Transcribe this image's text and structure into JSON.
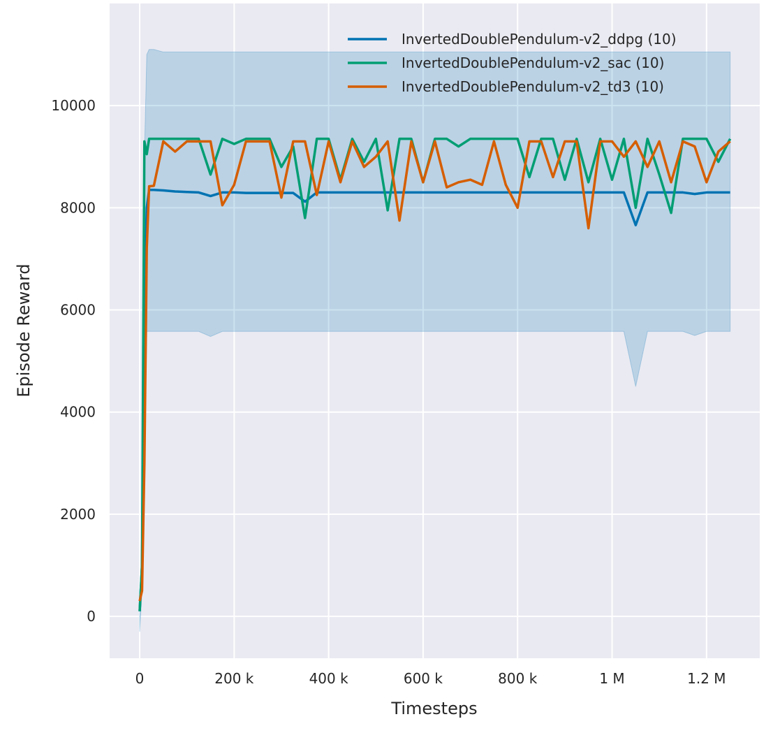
{
  "chart_data": {
    "type": "line",
    "title": "",
    "xlabel": "Timesteps",
    "ylabel": "Episode Reward",
    "xlim": [
      -63600,
      1312600
    ],
    "ylim": [
      -820,
      12000
    ],
    "grid": true,
    "legend_position": "top-right",
    "background": "#eaeaf2",
    "x_ticks": [
      0,
      200000,
      400000,
      600000,
      800000,
      1000000,
      1200000
    ],
    "x_tick_labels": [
      "0",
      "200 k",
      "400 k",
      "600 k",
      "800 k",
      "1 M",
      "1.2 M"
    ],
    "y_ticks": [
      0,
      2000,
      4000,
      6000,
      8000,
      10000
    ],
    "y_tick_labels": [
      "0",
      "2000",
      "4000",
      "6000",
      "8000",
      "10000"
    ],
    "x": [
      0,
      5000,
      10000,
      15000,
      20000,
      30000,
      50000,
      75000,
      100000,
      125000,
      150000,
      175000,
      200000,
      225000,
      250000,
      275000,
      300000,
      325000,
      350000,
      375000,
      400000,
      425000,
      450000,
      475000,
      500000,
      525000,
      550000,
      575000,
      600000,
      625000,
      650000,
      675000,
      700000,
      725000,
      750000,
      775000,
      800000,
      825000,
      850000,
      875000,
      900000,
      925000,
      950000,
      975000,
      1000000,
      1025000,
      1050000,
      1075000,
      1100000,
      1125000,
      1150000,
      1175000,
      1200000,
      1225000,
      1250000
    ],
    "series": [
      {
        "name": "InvertedDoublePendulum-v2_ddpg (10)",
        "color": "#0173b2",
        "values": [
          100,
          1000,
          6000,
          8000,
          8350,
          8350,
          8340,
          8320,
          8310,
          8300,
          8230,
          8300,
          8300,
          8290,
          8290,
          8290,
          8290,
          8290,
          8120,
          8300,
          8300,
          8300,
          8300,
          8300,
          8300,
          8300,
          8300,
          8300,
          8300,
          8300,
          8300,
          8300,
          8300,
          8300,
          8300,
          8300,
          8300,
          8300,
          8300,
          8300,
          8300,
          8300,
          8300,
          8300,
          8300,
          8300,
          7660,
          8300,
          8300,
          8300,
          8300,
          8270,
          8300,
          8300,
          8300
        ],
        "ci_lower": [
          -300,
          500,
          3000,
          5580,
          5580,
          5580,
          5580,
          5580,
          5580,
          5580,
          5480,
          5580,
          5580,
          5580,
          5580,
          5580,
          5580,
          5580,
          5580,
          5580,
          5580,
          5580,
          5580,
          5580,
          5580,
          5580,
          5580,
          5580,
          5580,
          5580,
          5580,
          5580,
          5580,
          5580,
          5580,
          5580,
          5580,
          5580,
          5580,
          5580,
          5580,
          5580,
          5580,
          5580,
          5580,
          5580,
          4500,
          5580,
          5580,
          5580,
          5580,
          5500,
          5580,
          5580,
          5580
        ],
        "ci_upper": [
          300,
          1500,
          9000,
          11000,
          11100,
          11100,
          11050,
          11050,
          11050,
          11050,
          11050,
          11050,
          11050,
          11050,
          11050,
          11050,
          11050,
          11050,
          11050,
          11050,
          11050,
          11050,
          11050,
          11050,
          11050,
          11050,
          11050,
          11050,
          11050,
          11050,
          11050,
          11050,
          11050,
          11050,
          11050,
          11050,
          11050,
          11050,
          11050,
          11050,
          11050,
          11050,
          11050,
          11050,
          11050,
          11050,
          11050,
          11050,
          11050,
          11050,
          11050,
          11050,
          11050,
          11050,
          11050
        ]
      },
      {
        "name": "InvertedDoublePendulum-v2_sac (10)",
        "color": "#029e73",
        "values": [
          100,
          1000,
          9300,
          9050,
          9350,
          9350,
          9350,
          9350,
          9350,
          9350,
          8650,
          9350,
          9250,
          9350,
          9350,
          9350,
          8800,
          9200,
          7800,
          9350,
          9350,
          8550,
          9350,
          8900,
          9350,
          7950,
          9350,
          9350,
          8500,
          9350,
          9350,
          9200,
          9350,
          9350,
          9350,
          9350,
          9350,
          8600,
          9350,
          9350,
          8550,
          9350,
          8500,
          9350,
          8550,
          9350,
          8000,
          9350,
          8650,
          7900,
          9350,
          9350,
          9350,
          8900,
          9350
        ]
      },
      {
        "name": "InvertedDoublePendulum-v2_td3 (10)",
        "color": "#d55e00",
        "values": [
          300,
          500,
          3000,
          7200,
          8420,
          8430,
          9300,
          9100,
          9300,
          9300,
          9300,
          8050,
          8450,
          9300,
          9300,
          9300,
          8200,
          9300,
          9300,
          8250,
          9300,
          8500,
          9300,
          8800,
          9000,
          9300,
          7750,
          9300,
          8500,
          9300,
          8400,
          8500,
          8550,
          8450,
          9300,
          8450,
          8000,
          9300,
          9300,
          8600,
          9300,
          9300,
          7600,
          9300,
          9300,
          9000,
          9300,
          8800,
          9300,
          8500,
          9300,
          9200,
          8500,
          9100,
          9300
        ]
      }
    ]
  }
}
